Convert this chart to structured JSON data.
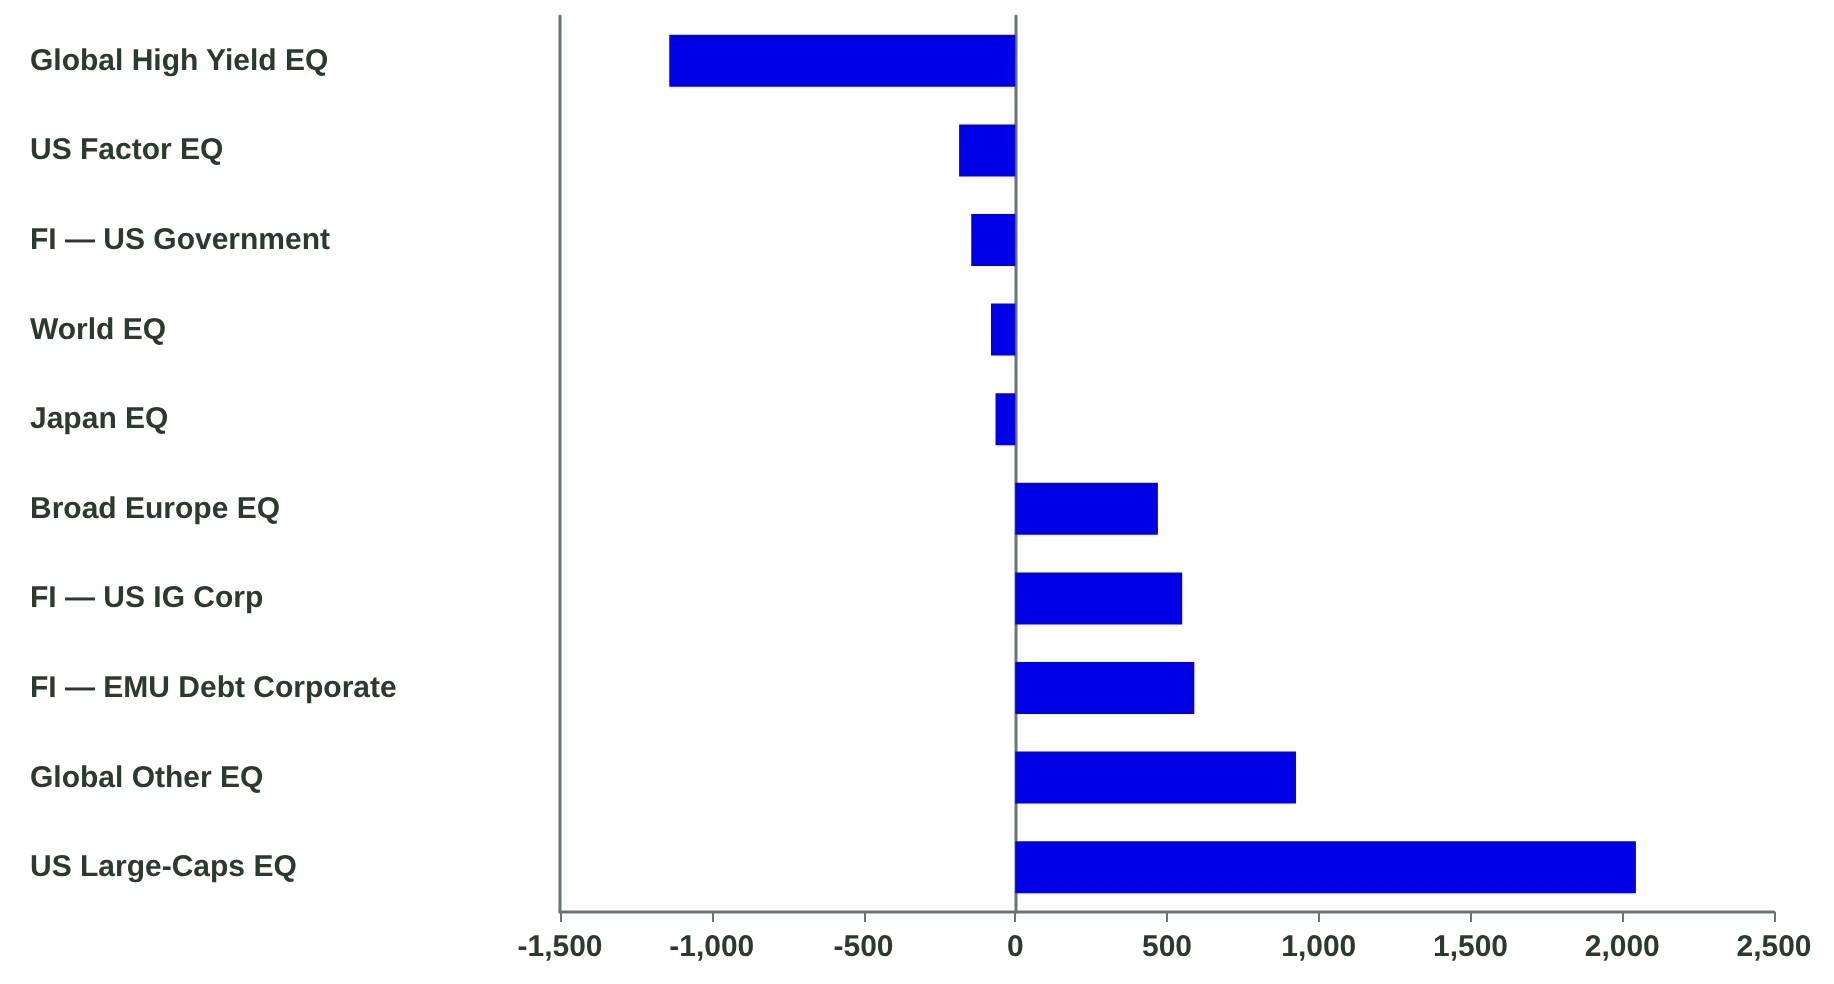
{
  "chart_data": {
    "type": "bar",
    "orientation": "horizontal",
    "categories": [
      "Global High Yield EQ",
      "US Factor EQ",
      "FI — US Government",
      "World EQ",
      "Japan EQ",
      "Broad Europe EQ",
      "FI — US IG Corp",
      "FI — EMU Debt Corporate",
      "Global Other EQ",
      "US Large-Caps EQ"
    ],
    "values": [
      -1140,
      -185,
      -145,
      -80,
      -65,
      470,
      550,
      590,
      925,
      2045
    ],
    "color": "#0000e6",
    "xlim": [
      -1500,
      2500
    ],
    "xticks": [
      {
        "value": -1500,
        "label": "-1,500"
      },
      {
        "value": -1000,
        "label": "-1,000"
      },
      -500,
      0,
      500,
      {
        "value": 1000,
        "label": "1,000"
      },
      {
        "value": 1500,
        "label": "1,500"
      },
      {
        "value": 2000,
        "label": "2,000"
      },
      {
        "value": 2500,
        "label": "2,500"
      }
    ]
  }
}
